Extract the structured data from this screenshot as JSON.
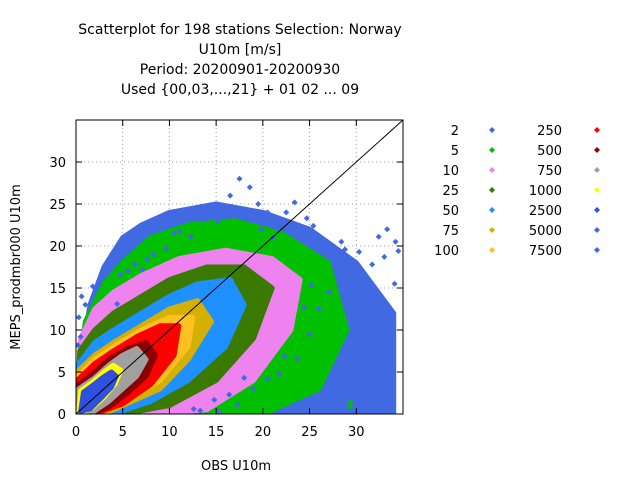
{
  "chart_data": {
    "type": "scatter",
    "title_lines": [
      "Scatterplot for  198 stations Selection: Norway",
      "U10m [m/s]",
      "Period: 20200901-20200930",
      "Used {00,03,...,21} + 01 02 ... 09"
    ],
    "xlabel": "OBS U10m",
    "ylabel": "MEPS_prodmbr000 U10m",
    "xlim": [
      0,
      35
    ],
    "ylim": [
      0,
      35
    ],
    "xticks": [
      0,
      5,
      10,
      15,
      20,
      25,
      30
    ],
    "yticks": [
      0,
      5,
      10,
      15,
      20,
      25,
      30
    ],
    "grid": true,
    "diagonal": true,
    "legend_placement": "right",
    "legend": [
      {
        "label": "2",
        "color": "#4169e1"
      },
      {
        "label": "5",
        "color": "#00c000"
      },
      {
        "label": "10",
        "color": "#ee82ee"
      },
      {
        "label": "25",
        "color": "#3a7a00"
      },
      {
        "label": "50",
        "color": "#1e90ff"
      },
      {
        "label": "75",
        "color": "#d4b000"
      },
      {
        "label": "100",
        "color": "#ffc020"
      },
      {
        "label": "250",
        "color": "#ff0000"
      },
      {
        "label": "500",
        "color": "#8b0000"
      },
      {
        "label": "750",
        "color": "#a0a0a0"
      },
      {
        "label": "1000",
        "color": "#ffff00"
      },
      {
        "label": "2500",
        "color": "#3050e0"
      },
      {
        "label": "5000",
        "color": "#4169e1"
      },
      {
        "label": "7500",
        "color": "#4169e1"
      }
    ],
    "density_bands": [
      {
        "color": "#4169e1",
        "points": [
          [
            0,
            0
          ],
          [
            0.3,
            4.8
          ],
          [
            1.5,
            13
          ],
          [
            3,
            17.5
          ],
          [
            5,
            21
          ],
          [
            7,
            22.5
          ],
          [
            10,
            24
          ],
          [
            15,
            25
          ],
          [
            20,
            24
          ],
          [
            25,
            22
          ],
          [
            30,
            18
          ],
          [
            34,
            12
          ],
          [
            34,
            0
          ],
          [
            20,
            0
          ],
          [
            10,
            0
          ]
        ]
      },
      {
        "color": "#00c000",
        "points": [
          [
            0,
            0
          ],
          [
            0.2,
            3.5
          ],
          [
            1,
            11
          ],
          [
            3,
            15.5
          ],
          [
            5,
            18
          ],
          [
            8,
            21
          ],
          [
            12,
            22.5
          ],
          [
            17,
            23
          ],
          [
            22,
            21.5
          ],
          [
            27,
            18
          ],
          [
            29,
            10
          ],
          [
            26,
            3
          ],
          [
            20,
            0
          ],
          [
            10,
            0
          ]
        ]
      },
      {
        "color": "#ee82ee",
        "points": [
          [
            0,
            0
          ],
          [
            0.2,
            2
          ],
          [
            0.5,
            9
          ],
          [
            2,
            12.5
          ],
          [
            4,
            14.5
          ],
          [
            7,
            16.5
          ],
          [
            11,
            18.5
          ],
          [
            16,
            19.5
          ],
          [
            21,
            18.5
          ],
          [
            24,
            16
          ],
          [
            23,
            10
          ],
          [
            19,
            4
          ],
          [
            14,
            0.5
          ],
          [
            8,
            0
          ]
        ]
      },
      {
        "color": "#3a7a00",
        "points": [
          [
            0,
            0
          ],
          [
            0.2,
            1
          ],
          [
            0.4,
            7.5
          ],
          [
            2,
            10
          ],
          [
            4,
            12
          ],
          [
            7,
            14
          ],
          [
            10,
            16
          ],
          [
            14,
            17.5
          ],
          [
            18,
            17.5
          ],
          [
            21,
            15
          ],
          [
            19,
            9
          ],
          [
            15,
            4
          ],
          [
            10,
            1
          ],
          [
            5,
            0
          ]
        ]
      },
      {
        "color": "#1e90ff",
        "points": [
          [
            0,
            0
          ],
          [
            0.3,
            6
          ],
          [
            2,
            8.5
          ],
          [
            4,
            10
          ],
          [
            7,
            12
          ],
          [
            10,
            14
          ],
          [
            13,
            15.5
          ],
          [
            16.5,
            16
          ],
          [
            18,
            13
          ],
          [
            16,
            8
          ],
          [
            12,
            4
          ],
          [
            8,
            1.5
          ],
          [
            4,
            0
          ]
        ]
      },
      {
        "color": "#d4b000",
        "points": [
          [
            0,
            0
          ],
          [
            0.3,
            5.2
          ],
          [
            2,
            7
          ],
          [
            4,
            8.5
          ],
          [
            7,
            10.5
          ],
          [
            10,
            12.5
          ],
          [
            13,
            13.5
          ],
          [
            14.5,
            11
          ],
          [
            12,
            6.5
          ],
          [
            9,
            3
          ],
          [
            5,
            1
          ],
          [
            3,
            0
          ]
        ]
      },
      {
        "color": "#ffc020",
        "points": [
          [
            0,
            0
          ],
          [
            0.3,
            4.6
          ],
          [
            2,
            6.5
          ],
          [
            4,
            8
          ],
          [
            7,
            10
          ],
          [
            10,
            11.5
          ],
          [
            12.5,
            11.5
          ],
          [
            12,
            8
          ],
          [
            9,
            4
          ],
          [
            5,
            1.5
          ],
          [
            2.5,
            0
          ]
        ]
      },
      {
        "color": "#ff0000",
        "points": [
          [
            0,
            0
          ],
          [
            0.3,
            4.2
          ],
          [
            2,
            6
          ],
          [
            4,
            7.5
          ],
          [
            6.5,
            9.2
          ],
          [
            9,
            10.5
          ],
          [
            11,
            10.5
          ],
          [
            10.5,
            7
          ],
          [
            8,
            3.5
          ],
          [
            5,
            1.2
          ],
          [
            2,
            0
          ]
        ]
      },
      {
        "color": "#8b0000",
        "points": [
          [
            0,
            0
          ],
          [
            0.3,
            3.5
          ],
          [
            2,
            5
          ],
          [
            3.5,
            6.5
          ],
          [
            5.5,
            7.8
          ],
          [
            7.5,
            8.5
          ],
          [
            8.5,
            7
          ],
          [
            7.5,
            4.5
          ],
          [
            5.5,
            2.5
          ],
          [
            3.5,
            0.8
          ],
          [
            1.5,
            0
          ]
        ]
      },
      {
        "color": "#a0a0a0",
        "points": [
          [
            0,
            0
          ],
          [
            0.3,
            3
          ],
          [
            2,
            4.3
          ],
          [
            3.5,
            5.8
          ],
          [
            5,
            7
          ],
          [
            6.5,
            7.8
          ],
          [
            7.5,
            6.5
          ],
          [
            6.5,
            4.5
          ],
          [
            5,
            3
          ],
          [
            3.5,
            1.5
          ],
          [
            1.5,
            0
          ]
        ]
      },
      {
        "color": "#ffff00",
        "points": [
          [
            0.3,
            0.2
          ],
          [
            0.5,
            2.8
          ],
          [
            1.8,
            3.8
          ],
          [
            3,
            5
          ],
          [
            4,
            5.8
          ],
          [
            4.8,
            5.2
          ],
          [
            4.2,
            3.6
          ],
          [
            3,
            2
          ],
          [
            1.8,
            0.8
          ],
          [
            0.8,
            0.2
          ]
        ]
      },
      {
        "color": "#3050e0",
        "points": [
          [
            0.5,
            0.3
          ],
          [
            0.8,
            2.6
          ],
          [
            1.8,
            3.4
          ],
          [
            2.8,
            4.3
          ],
          [
            3.8,
            5
          ],
          [
            4.3,
            4.5
          ],
          [
            3.8,
            3.2
          ],
          [
            2.6,
            1.8
          ],
          [
            1.5,
            0.6
          ]
        ]
      }
    ],
    "scatter_points": [
      [
        0.3,
        11.5
      ],
      [
        0.5,
        9.2
      ],
      [
        0.2,
        8.2
      ],
      [
        1,
        13
      ],
      [
        2.4,
        15.3
      ],
      [
        3.1,
        16.7
      ],
      [
        4.4,
        13.1
      ],
      [
        5.6,
        17
      ],
      [
        7.1,
        17.2
      ],
      [
        8.3,
        19
      ],
      [
        9.6,
        19.7
      ],
      [
        11.1,
        21.7
      ],
      [
        13.1,
        23.4
      ],
      [
        13.2,
        24.5
      ],
      [
        15.4,
        24.1
      ],
      [
        16.5,
        26
      ],
      [
        17.4,
        24
      ],
      [
        18.6,
        27
      ],
      [
        19.5,
        25
      ],
      [
        20.5,
        24
      ],
      [
        21.5,
        22
      ],
      [
        22.5,
        24
      ],
      [
        23.4,
        25.2
      ],
      [
        24.7,
        23.3
      ],
      [
        24.5,
        21
      ],
      [
        25.4,
        22.4
      ],
      [
        26.5,
        20
      ],
      [
        27.8,
        17.5
      ],
      [
        28.4,
        20.5
      ],
      [
        29.6,
        16.5
      ],
      [
        30.3,
        19.3
      ],
      [
        31.7,
        17.8
      ],
      [
        32.4,
        21.1
      ],
      [
        33.3,
        22
      ],
      [
        34.2,
        20.5
      ],
      [
        34.5,
        19.4
      ],
      [
        33,
        18.7
      ],
      [
        34.1,
        15.5
      ],
      [
        30.4,
        9
      ],
      [
        29.4,
        1.4
      ],
      [
        29.3,
        0.9
      ],
      [
        14.8,
        1.7
      ],
      [
        13.3,
        0.4
      ],
      [
        12.6,
        0.6
      ],
      [
        15.3,
        0.3
      ],
      [
        16.4,
        2.3
      ],
      [
        17.3,
        1.1
      ],
      [
        18,
        4.3
      ],
      [
        19,
        3
      ],
      [
        20.5,
        4.2
      ],
      [
        21.7,
        4.8
      ],
      [
        22.3,
        6.9
      ],
      [
        23.7,
        6.6
      ],
      [
        25,
        9.5
      ],
      [
        26,
        12.5
      ],
      [
        27.1,
        14.5
      ],
      [
        17.5,
        28
      ],
      [
        24.4,
        12.7
      ],
      [
        25.2,
        15.3
      ],
      [
        28.8,
        19.6
      ],
      [
        1.8,
        15.2
      ],
      [
        6.3,
        17.8
      ],
      [
        0.6,
        14
      ],
      [
        19.8,
        22
      ],
      [
        15.2,
        22.9
      ],
      [
        21.1,
        21
      ],
      [
        12.3,
        21.1
      ],
      [
        10.5,
        21.5
      ],
      [
        7.6,
        18.4
      ],
      [
        4.8,
        16.6
      ]
    ]
  }
}
